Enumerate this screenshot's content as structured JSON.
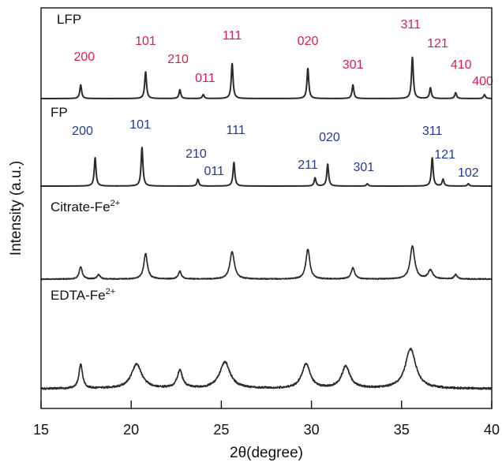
{
  "chart_data": {
    "type": "line",
    "xlabel": "2θ(degree)",
    "ylabel": "Intensity (a.u.)",
    "xlim": [
      15,
      40
    ],
    "x_ticks": [
      15,
      20,
      25,
      30,
      35,
      40
    ],
    "y_scale": "arbitrary offset traces",
    "grid": false,
    "colors": {
      "trace": "#2b2b2b",
      "lfp_labels": "#d61f4b",
      "fp_labels": "#23379b",
      "axis": "#111111"
    },
    "series": [
      {
        "name": "LFP",
        "display_name": "LFP",
        "superscript": "",
        "noise": 0.002,
        "peaks": [
          {
            "x": 17.2,
            "h": 0.28,
            "w": 0.06
          },
          {
            "x": 20.8,
            "h": 0.55,
            "w": 0.06
          },
          {
            "x": 22.7,
            "h": 0.18,
            "w": 0.06
          },
          {
            "x": 24.0,
            "h": 0.08,
            "w": 0.06
          },
          {
            "x": 25.6,
            "h": 0.72,
            "w": 0.06
          },
          {
            "x": 29.8,
            "h": 0.62,
            "w": 0.06
          },
          {
            "x": 32.3,
            "h": 0.28,
            "w": 0.06
          },
          {
            "x": 35.6,
            "h": 0.85,
            "w": 0.06
          },
          {
            "x": 36.6,
            "h": 0.22,
            "w": 0.06
          },
          {
            "x": 38.0,
            "h": 0.12,
            "w": 0.06
          },
          {
            "x": 39.6,
            "h": 0.08,
            "w": 0.06
          }
        ]
      },
      {
        "name": "FP",
        "display_name": "FP",
        "superscript": "",
        "noise": 0.002,
        "peaks": [
          {
            "x": 18.0,
            "h": 0.62,
            "w": 0.06
          },
          {
            "x": 20.6,
            "h": 0.85,
            "w": 0.06
          },
          {
            "x": 23.7,
            "h": 0.15,
            "w": 0.06
          },
          {
            "x": 25.7,
            "h": 0.52,
            "w": 0.06
          },
          {
            "x": 30.2,
            "h": 0.18,
            "w": 0.06
          },
          {
            "x": 30.9,
            "h": 0.48,
            "w": 0.06
          },
          {
            "x": 33.1,
            "h": 0.05,
            "w": 0.06
          },
          {
            "x": 36.7,
            "h": 0.62,
            "w": 0.06
          },
          {
            "x": 37.3,
            "h": 0.15,
            "w": 0.06
          },
          {
            "x": 38.7,
            "h": 0.05,
            "w": 0.06
          }
        ]
      },
      {
        "name": "Citrate-Fe2+",
        "display_name": "Citrate-Fe",
        "superscript": "2+",
        "noise": 0.025,
        "peaks": [
          {
            "x": 17.2,
            "h": 0.28,
            "w": 0.1
          },
          {
            "x": 18.2,
            "h": 0.1,
            "w": 0.1
          },
          {
            "x": 20.8,
            "h": 0.58,
            "w": 0.12
          },
          {
            "x": 22.7,
            "h": 0.18,
            "w": 0.1
          },
          {
            "x": 25.6,
            "h": 0.62,
            "w": 0.15
          },
          {
            "x": 29.8,
            "h": 0.68,
            "w": 0.13
          },
          {
            "x": 32.3,
            "h": 0.25,
            "w": 0.12
          },
          {
            "x": 35.6,
            "h": 0.75,
            "w": 0.15
          },
          {
            "x": 36.6,
            "h": 0.2,
            "w": 0.15
          },
          {
            "x": 38.0,
            "h": 0.1,
            "w": 0.1
          }
        ]
      },
      {
        "name": "EDTA-Fe2+",
        "display_name": "EDTA-Fe",
        "superscript": "2+",
        "noise": 0.05,
        "peaks": [
          {
            "x": 17.2,
            "h": 0.55,
            "w": 0.12
          },
          {
            "x": 20.3,
            "h": 0.55,
            "w": 0.35
          },
          {
            "x": 22.7,
            "h": 0.4,
            "w": 0.18
          },
          {
            "x": 25.2,
            "h": 0.6,
            "w": 0.35
          },
          {
            "x": 29.7,
            "h": 0.55,
            "w": 0.28
          },
          {
            "x": 31.9,
            "h": 0.5,
            "w": 0.28
          },
          {
            "x": 35.5,
            "h": 0.9,
            "w": 0.35
          }
        ]
      }
    ],
    "annotations": [
      {
        "series": "LFP",
        "text": "200",
        "x": 17.4
      },
      {
        "series": "LFP",
        "text": "101",
        "x": 20.8
      },
      {
        "series": "LFP",
        "text": "210",
        "x": 22.6
      },
      {
        "series": "LFP",
        "text": "011",
        "x": 24.1
      },
      {
        "series": "LFP",
        "text": "111",
        "x": 25.6
      },
      {
        "series": "LFP",
        "text": "020",
        "x": 29.8
      },
      {
        "series": "LFP",
        "text": "301",
        "x": 32.3
      },
      {
        "series": "LFP",
        "text": "311",
        "x": 35.5
      },
      {
        "series": "LFP",
        "text": "121",
        "x": 37.0
      },
      {
        "series": "LFP",
        "text": "410",
        "x": 38.3
      },
      {
        "series": "LFP",
        "text": "400",
        "x": 39.5
      },
      {
        "series": "FP",
        "text": "200",
        "x": 17.3
      },
      {
        "series": "FP",
        "text": "101",
        "x": 20.5
      },
      {
        "series": "FP",
        "text": "210",
        "x": 23.6
      },
      {
        "series": "FP",
        "text": "011",
        "x": 24.6
      },
      {
        "series": "FP",
        "text": "111",
        "x": 25.8
      },
      {
        "series": "FP",
        "text": "020",
        "x": 31.0
      },
      {
        "series": "FP",
        "text": "211",
        "x": 29.8
      },
      {
        "series": "FP",
        "text": "301",
        "x": 32.9
      },
      {
        "series": "FP",
        "text": "311",
        "x": 36.7
      },
      {
        "series": "FP",
        "text": "121",
        "x": 37.4
      },
      {
        "series": "FP",
        "text": "102",
        "x": 38.7
      }
    ]
  }
}
